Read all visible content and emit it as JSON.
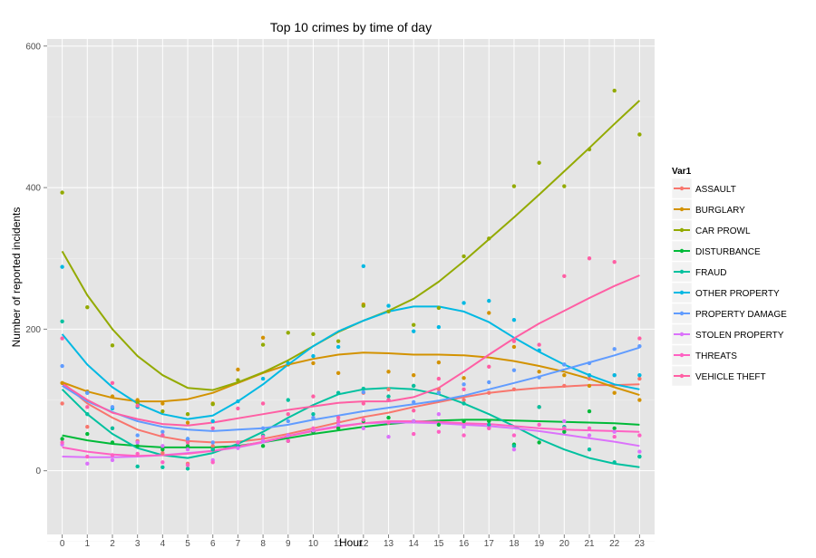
{
  "chart_data": {
    "type": "scatter",
    "title": "Top 10 crimes by time of day",
    "xlabel": "Hour",
    "ylabel": "Number of reported incidents",
    "xlim": [
      -0.6,
      23.6
    ],
    "ylim": [
      -90,
      610
    ],
    "x_ticks": [
      0,
      1,
      2,
      3,
      4,
      5,
      6,
      7,
      8,
      9,
      10,
      11,
      12,
      13,
      14,
      15,
      16,
      17,
      18,
      19,
      20,
      21,
      22,
      23
    ],
    "y_ticks": [
      0,
      200,
      400,
      600
    ],
    "grid": true,
    "legend": {
      "title": "Var1",
      "placement": "right"
    },
    "x": [
      0,
      1,
      2,
      3,
      4,
      5,
      6,
      7,
      8,
      9,
      10,
      11,
      12,
      13,
      14,
      15,
      16,
      17,
      18,
      19,
      20,
      21,
      22,
      23
    ],
    "series": [
      {
        "name": "ASSAULT",
        "color": "#F8766D",
        "points": [
          95,
          62,
          60,
          42,
          25,
          10,
          35,
          40,
          46,
          50,
          55,
          70,
          110,
          115,
          120,
          115,
          100,
          110,
          115,
          90,
          120,
          130,
          135,
          130
        ],
        "smooth": [
          125,
          95,
          75,
          58,
          48,
          42,
          40,
          41,
          45,
          52,
          60,
          68,
          76,
          82,
          90,
          97,
          104,
          110,
          114,
          117,
          119,
          121,
          121,
          122
        ]
      },
      {
        "name": "BURGLARY",
        "color": "#D39200",
        "points": [
          124,
          112,
          105,
          100,
          95,
          68,
          95,
          143,
          188,
          150,
          152,
          138,
          235,
          140,
          135,
          153,
          131,
          223,
          175,
          140,
          135,
          120,
          110,
          100
        ],
        "smooth": [
          125,
          112,
          103,
          98,
          98,
          101,
          110,
          124,
          138,
          150,
          158,
          164,
          167,
          166,
          164,
          164,
          163,
          160,
          155,
          148,
          140,
          130,
          118,
          107
        ]
      },
      {
        "name": "CAR PROWL",
        "color": "#93AA00",
        "points": [
          393,
          231,
          177,
          96,
          84,
          80,
          94,
          128,
          178,
          195,
          193,
          183,
          233,
          225,
          206,
          230,
          303,
          328,
          402,
          435,
          402,
          454,
          537,
          475
        ],
        "smooth": [
          310,
          248,
          200,
          162,
          135,
          117,
          114,
          125,
          139,
          156,
          176,
          196,
          212,
          226,
          243,
          267,
          296,
          327,
          358,
          390,
          423,
          456,
          490,
          523
        ]
      },
      {
        "name": "DISTURBANCE",
        "color": "#00BA38",
        "points": [
          45,
          52,
          40,
          35,
          30,
          35,
          30,
          35,
          35,
          42,
          55,
          60,
          70,
          75,
          70,
          65,
          70,
          70,
          37,
          40,
          55,
          84,
          60,
          20
        ],
        "smooth": [
          50,
          43,
          38,
          35,
          33,
          33,
          33,
          35,
          40,
          46,
          52,
          57,
          62,
          66,
          69,
          71,
          72,
          72,
          71,
          70,
          69,
          68,
          67,
          65
        ]
      },
      {
        "name": "FRAUD",
        "color": "#00C19F",
        "points": [
          211,
          80,
          60,
          6,
          5,
          3,
          30,
          35,
          50,
          100,
          80,
          110,
          116,
          105,
          120,
          110,
          95,
          65,
          35,
          90,
          62,
          30,
          12,
          20
        ],
        "smooth": [
          115,
          80,
          52,
          32,
          22,
          18,
          25,
          38,
          55,
          75,
          93,
          108,
          115,
          117,
          115,
          108,
          95,
          80,
          63,
          45,
          30,
          18,
          10,
          5
        ]
      },
      {
        "name": "OTHER PROPERTY",
        "color": "#00B9E3",
        "points": [
          288,
          110,
          88,
          90,
          50,
          45,
          70,
          98,
          130,
          152,
          162,
          175,
          289,
          233,
          197,
          203,
          237,
          240,
          213,
          170,
          150,
          135,
          135,
          135
        ],
        "smooth": [
          193,
          150,
          118,
          95,
          80,
          73,
          78,
          98,
          122,
          150,
          176,
          197,
          212,
          225,
          232,
          232,
          225,
          210,
          188,
          168,
          150,
          135,
          122,
          115
        ]
      },
      {
        "name": "PROPERTY DAMAGE",
        "color": "#619CFF",
        "points": [
          148,
          110,
          90,
          50,
          55,
          45,
          40,
          40,
          60,
          70,
          75,
          70,
          111,
          100,
          97,
          110,
          122,
          125,
          142,
          132,
          150,
          152,
          172,
          176
        ],
        "smooth": [
          120,
          98,
          83,
          70,
          62,
          58,
          56,
          58,
          60,
          65,
          72,
          78,
          84,
          89,
          94,
          99,
          106,
          115,
          124,
          133,
          143,
          153,
          163,
          174
        ]
      },
      {
        "name": "STOLEN PROPERTY",
        "color": "#DB72FB",
        "points": [
          37,
          10,
          15,
          40,
          35,
          30,
          15,
          32,
          42,
          50,
          57,
          65,
          60,
          48,
          70,
          80,
          62,
          60,
          30,
          65,
          70,
          50,
          55,
          27
        ],
        "smooth": [
          20,
          19,
          19,
          20,
          22,
          25,
          28,
          33,
          40,
          49,
          57,
          63,
          67,
          68,
          68,
          67,
          65,
          63,
          60,
          56,
          51,
          46,
          41,
          35
        ]
      },
      {
        "name": "THREATS",
        "color": "#FF61C3",
        "points": [
          40,
          20,
          22,
          24,
          12,
          8,
          12,
          40,
          48,
          42,
          60,
          70,
          72,
          68,
          52,
          55,
          50,
          60,
          50,
          65,
          60,
          60,
          48,
          50
        ],
        "smooth": [
          33,
          27,
          23,
          21,
          22,
          24,
          28,
          34,
          41,
          49,
          56,
          62,
          67,
          70,
          70,
          69,
          67,
          66,
          63,
          60,
          58,
          57,
          56,
          55
        ]
      },
      {
        "name": "VEHICLE THEFT",
        "color": "#FF5FA4",
        "points": [
          187,
          90,
          124,
          92,
          50,
          40,
          60,
          88,
          95,
          80,
          105,
          75,
          95,
          100,
          85,
          130,
          115,
          147,
          183,
          178,
          275,
          300,
          295,
          187
        ],
        "smooth": [
          123,
          100,
          82,
          73,
          66,
          64,
          68,
          74,
          80,
          86,
          91,
          96,
          98,
          98,
          104,
          117,
          140,
          164,
          187,
          208,
          226,
          244,
          261,
          276
        ]
      }
    ]
  }
}
